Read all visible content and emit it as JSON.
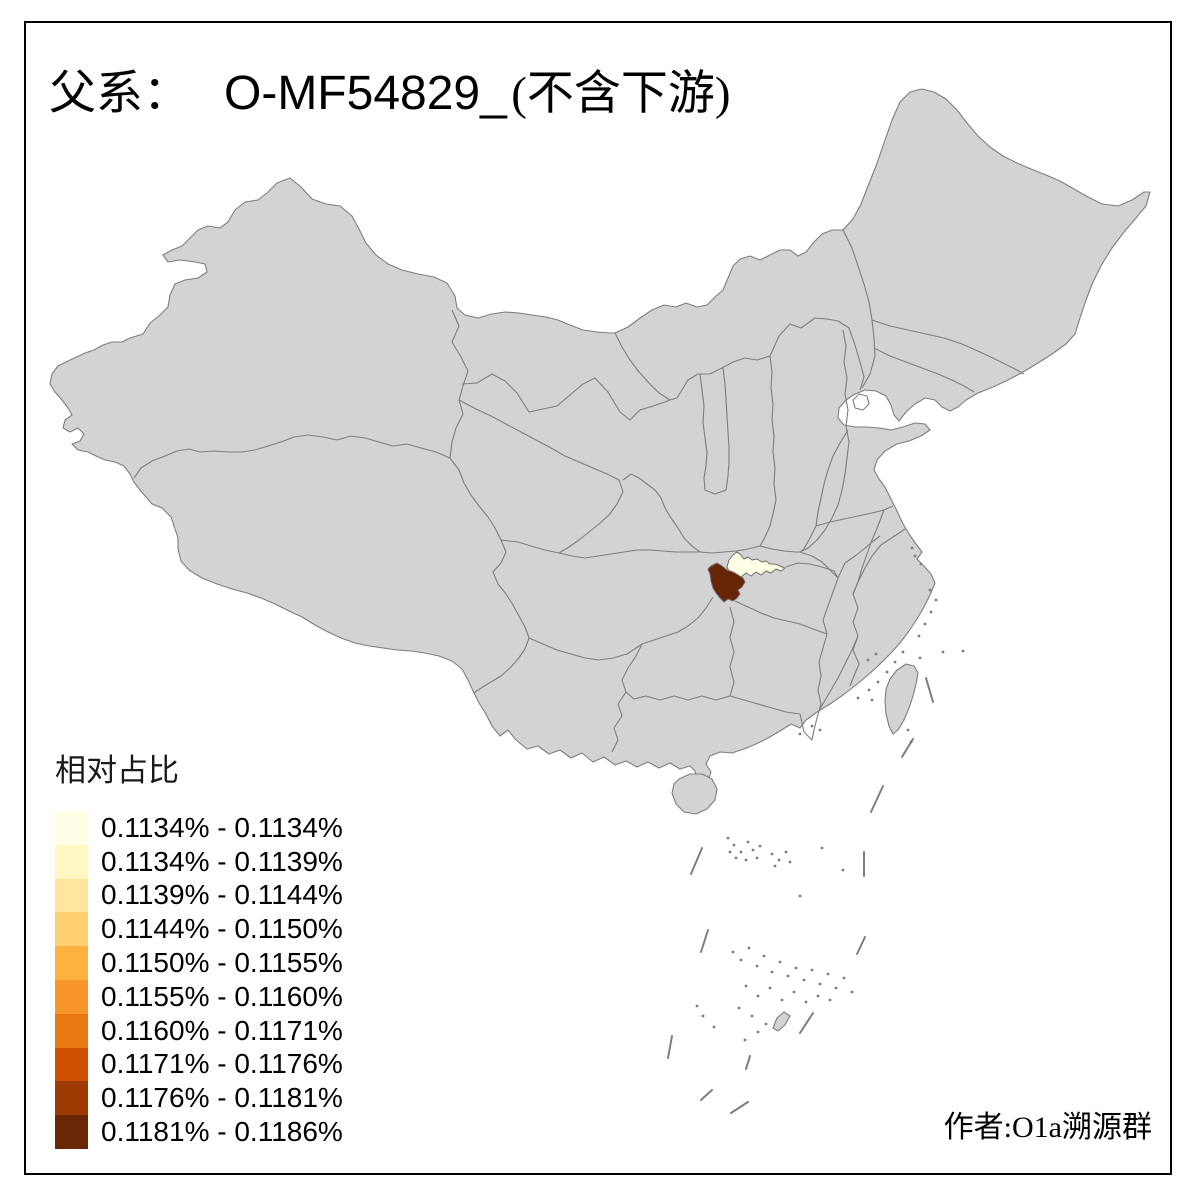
{
  "title": {
    "family_label": "父系：",
    "haplogroup": "O-MF54829_",
    "downstream_note": "(不含下游)"
  },
  "legend": {
    "title": "相对占比",
    "items": [
      {
        "range": "0.1134% - 0.1134%",
        "color": "#FFFFE5"
      },
      {
        "range": "0.1134% - 0.1139%",
        "color": "#FFF8C2"
      },
      {
        "range": "0.1139% - 0.1144%",
        "color": "#FEE79D"
      },
      {
        "range": "0.1144% - 0.1150%",
        "color": "#FED16E"
      },
      {
        "range": "0.1150% - 0.1155%",
        "color": "#FEB13F"
      },
      {
        "range": "0.1155% - 0.1160%",
        "color": "#F8952B"
      },
      {
        "range": "0.1160% - 0.1171%",
        "color": "#E87814"
      },
      {
        "range": "0.1171% - 0.1176%",
        "color": "#CC4F02"
      },
      {
        "range": "0.1176% - 0.1181%",
        "color": "#9E3A04"
      },
      {
        "range": "0.1181% - 0.1186%",
        "color": "#6A2705"
      }
    ]
  },
  "author_credit": "作者:O1a溯源群",
  "map": {
    "land_fill": "#D3D3D3",
    "border_color": "#7E7E7E",
    "background": "#FFFFFF",
    "frame_color": "#000000",
    "highlighted_regions": [
      {
        "id": "region-light",
        "description": "cream region (lowest bin), northeast wing of central highlighted area",
        "value_range": "0.1134% - 0.1134%",
        "color": "#FFFFE5"
      },
      {
        "id": "region-dark",
        "description": "dark brown region (highest bin), central China",
        "value_range": "0.1181% - 0.1186%",
        "color": "#662506"
      }
    ]
  },
  "chart_data": {
    "type": "choropleth",
    "title": "父系： O-MF54829_ (不含下游)",
    "legend_title": "相对占比",
    "bins": [
      "0.1134% - 0.1134%",
      "0.1134% - 0.1139%",
      "0.1139% - 0.1144%",
      "0.1144% - 0.1150%",
      "0.1150% - 0.1155%",
      "0.1155% - 0.1160%",
      "0.1160% - 0.1171%",
      "0.1171% - 0.1176%",
      "0.1176% - 0.1181%",
      "0.1181% - 0.1186%"
    ],
    "bin_colors": [
      "#FFFFE5",
      "#FFF8C2",
      "#FEE79D",
      "#FED16E",
      "#FEB13F",
      "#F8952B",
      "#E87814",
      "#CC4F02",
      "#9E3A04",
      "#6A2705"
    ],
    "regions_with_data": [
      {
        "region": "dark brown area (Chongqing vicinity, southwest part)",
        "bin": "0.1181% - 0.1186%"
      },
      {
        "region": "cream area (northeast wing adjoining the dark area)",
        "bin": "0.1134% - 0.1134%"
      }
    ],
    "note_from_pixels": "all other provinces rendered in plain gray (no highlighted value)"
  }
}
